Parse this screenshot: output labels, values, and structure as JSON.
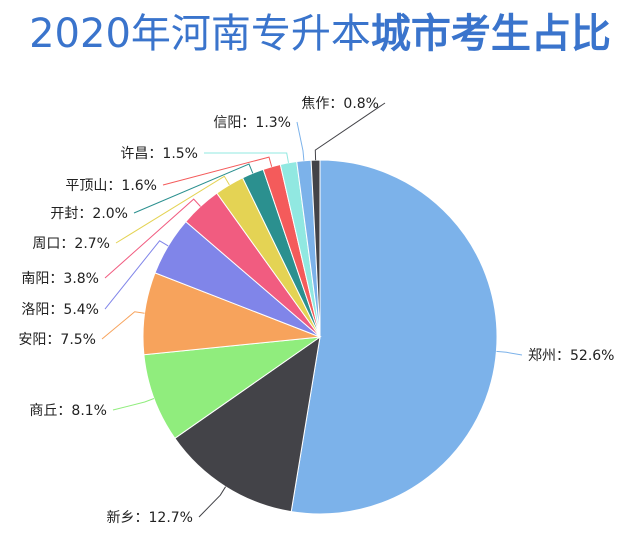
{
  "title": {
    "part1": "2020年河南专升本",
    "part2": "城市考生占比"
  },
  "chart_data": {
    "type": "pie",
    "title": "2020年河南专升本城市考生占比",
    "legend": "none",
    "slices": [
      {
        "name": "郑州",
        "value": 52.6,
        "label": "郑州：52.6%",
        "color": "#7cb2ea"
      },
      {
        "name": "新乡",
        "value": 12.7,
        "label": "新乡：12.7%",
        "color": "#434348"
      },
      {
        "name": "商丘",
        "value": 8.1,
        "label": "商丘：8.1%",
        "color": "#90ed7d"
      },
      {
        "name": "安阳",
        "value": 7.5,
        "label": "安阳：7.5%",
        "color": "#f7a35c"
      },
      {
        "name": "洛阳",
        "value": 5.4,
        "label": "洛阳：5.4%",
        "color": "#8085e9"
      },
      {
        "name": "南阳",
        "value": 3.8,
        "label": "南阳：3.8%",
        "color": "#f15c80"
      },
      {
        "name": "周口",
        "value": 2.7,
        "label": "周口：2.7%",
        "color": "#e4d354"
      },
      {
        "name": "开封",
        "value": 2.0,
        "label": "开封：2.0%",
        "color": "#2b908f"
      },
      {
        "name": "平顶山",
        "value": 1.6,
        "label": "平顶山：1.6%",
        "color": "#f45b5b"
      },
      {
        "name": "许昌",
        "value": 1.5,
        "label": "许昌：1.5%",
        "color": "#91e8e1"
      },
      {
        "name": "信阳",
        "value": 1.3,
        "label": "信阳：1.3%",
        "color": "#7cb2ea"
      },
      {
        "name": "焦作",
        "value": 0.8,
        "label": "焦作：0.8%",
        "color": "#434348"
      }
    ]
  }
}
